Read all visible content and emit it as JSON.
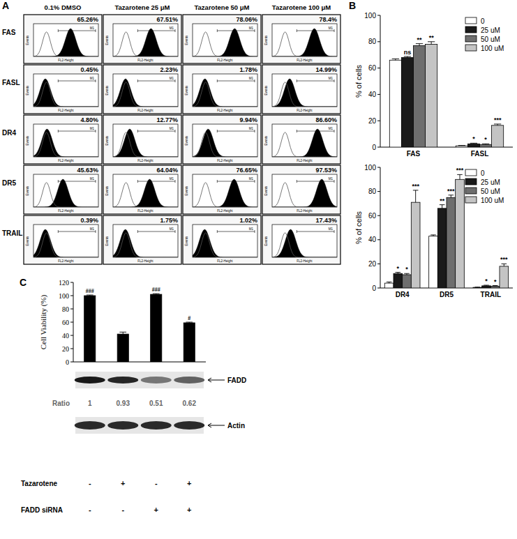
{
  "panel_labels": [
    "A",
    "B",
    "C"
  ],
  "flow_cytometry": {
    "columns": [
      "0.1% DMSO",
      "Tazarotene 25 μM",
      "Tazarotene 50 μM",
      "Tazarotene 100 μM"
    ],
    "gate_label": "M1",
    "x_label": "FL2-Height",
    "y_label": "Events",
    "rows": [
      {
        "label": "FAS",
        "values": [
          65.26,
          67.51,
          78.06,
          78.4
        ],
        "value_labels": [
          "65.26%",
          "67.51%",
          "78.06%",
          "78.4%"
        ]
      },
      {
        "label": "FASL",
        "values": [
          0.45,
          2.23,
          1.78,
          14.99
        ],
        "value_labels": [
          "0.45%",
          "2.23%",
          "1.78%",
          "14.99%"
        ]
      },
      {
        "label": "DR4",
        "values": [
          4.8,
          12.77,
          9.94,
          86.6
        ],
        "value_labels": [
          "4.80%",
          "12.77%",
          "9.94%",
          "86.60%"
        ]
      },
      {
        "label": "DR5",
        "values": [
          45.63,
          64.04,
          76.65,
          97.53
        ],
        "value_labels": [
          "45.63%",
          "64.04%",
          "76.65%",
          "97.53%"
        ]
      },
      {
        "label": "TRAIL",
        "values": [
          0.39,
          1.75,
          1.02,
          17.43
        ],
        "value_labels": [
          "0.39%",
          "1.75%",
          "1.02%",
          "17.43%"
        ]
      }
    ]
  },
  "chart_data": [
    {
      "type": "bar",
      "y_label": "% of cells",
      "categories": [
        "FAS",
        "FASL"
      ],
      "ylim": [
        0,
        100
      ],
      "yticks": [
        0,
        20,
        40,
        60,
        80,
        100
      ],
      "grid": false,
      "legend": "top-right",
      "series": [
        {
          "name": "0",
          "color": "#ffffff",
          "values": [
            66,
            1
          ],
          "errors": [
            1,
            0.3
          ],
          "annotations": [
            null,
            null
          ]
        },
        {
          "name": "25 uM",
          "color": "#1a1a1a",
          "values": [
            68,
            2.5
          ],
          "errors": [
            0.8,
            0.5
          ],
          "annotations": [
            "ns",
            "*"
          ]
        },
        {
          "name": "50 uM",
          "color": "#6e6e6e",
          "values": [
            77,
            2
          ],
          "errors": [
            1.5,
            0.5
          ],
          "annotations": [
            "**",
            "*"
          ]
        },
        {
          "name": "100 uM",
          "color": "#c4c4c4",
          "values": [
            78,
            16.5
          ],
          "errors": [
            2,
            1
          ],
          "annotations": [
            "**",
            "***"
          ]
        }
      ]
    },
    {
      "type": "bar",
      "y_label": "% of cells",
      "categories": [
        "DR4",
        "DR5",
        "TRAIL"
      ],
      "ylim": [
        0,
        100
      ],
      "yticks": [
        0,
        20,
        40,
        60,
        80,
        100
      ],
      "grid": false,
      "legend": "top-right",
      "series": [
        {
          "name": "0",
          "color": "#ffffff",
          "values": [
            4,
            43,
            0.5
          ],
          "errors": [
            1,
            1,
            0.2
          ],
          "annotations": [
            null,
            null,
            null
          ]
        },
        {
          "name": "25 uM",
          "color": "#1a1a1a",
          "values": [
            12,
            66,
            1.8
          ],
          "errors": [
            1,
            3,
            0.5
          ],
          "annotations": [
            "*",
            "**",
            "*"
          ]
        },
        {
          "name": "50 uM",
          "color": "#6e6e6e",
          "values": [
            11,
            75,
            1.5
          ],
          "errors": [
            1,
            2,
            0.5
          ],
          "annotations": [
            "*",
            "***",
            "*"
          ]
        },
        {
          "name": "100 uM",
          "color": "#c4c4c4",
          "values": [
            71,
            90,
            18
          ],
          "errors": [
            10,
            4,
            2
          ],
          "annotations": [
            "***",
            "***",
            "***"
          ]
        }
      ]
    },
    {
      "type": "bar",
      "y_label": "Cell Viability (%)",
      "categories": [
        null,
        null,
        null,
        null
      ],
      "ylim": [
        0,
        120
      ],
      "yticks": [
        0,
        20,
        40,
        60,
        80,
        100,
        120
      ],
      "grid": false,
      "tick_labels": "y",
      "color": "#000000",
      "values": [
        100,
        42,
        102,
        59
      ],
      "errors": [
        1,
        3,
        1,
        1
      ],
      "annotations": [
        "###",
        null,
        "###",
        "#"
      ]
    }
  ],
  "western_blot": {
    "bands": [
      {
        "label": "FADD"
      },
      {
        "label": "Actin"
      }
    ],
    "ratio_label": "Ratio",
    "ratios": [
      1,
      0.93,
      0.51,
      0.62
    ],
    "treatments": [
      {
        "label": "Tazarotene",
        "values": [
          "-",
          "+",
          "-",
          "+"
        ]
      },
      {
        "label": "FADD siRNA",
        "values": [
          "-",
          "-",
          "+",
          "+"
        ]
      }
    ]
  }
}
